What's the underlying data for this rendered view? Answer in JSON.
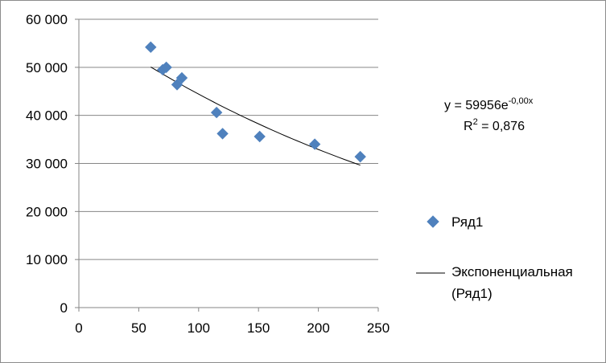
{
  "chart_data": {
    "type": "scatter",
    "title": "",
    "xlabel": "",
    "ylabel": "",
    "xlim": [
      0,
      250
    ],
    "ylim": [
      0,
      60000
    ],
    "x_ticks": [
      "0",
      "50",
      "100",
      "150",
      "200",
      "250"
    ],
    "y_ticks": [
      "0",
      "10 000",
      "20 000",
      "30 000",
      "40 000",
      "50 000",
      "60 000"
    ],
    "grid": "horizontal",
    "legend_position": "right",
    "series": [
      {
        "name": "Ряд1",
        "marker": "diamond",
        "color": "#4f81bd",
        "points": [
          {
            "x": 60,
            "y": 54200
          },
          {
            "x": 70,
            "y": 49500
          },
          {
            "x": 73,
            "y": 50000
          },
          {
            "x": 82,
            "y": 46400
          },
          {
            "x": 86,
            "y": 47800
          },
          {
            "x": 115,
            "y": 40600
          },
          {
            "x": 120,
            "y": 36200
          },
          {
            "x": 151,
            "y": 35600
          },
          {
            "x": 197,
            "y": 34000
          },
          {
            "x": 235,
            "y": 31400
          }
        ]
      }
    ],
    "trendline": {
      "name": "Экспоненциальная (Ряд1)",
      "type": "exponential",
      "a": 59956,
      "b": -0.003,
      "x_range": [
        60,
        235
      ],
      "color": "#000000"
    },
    "equation": {
      "prefix": "y = 59956e",
      "exponent": "-0,00x",
      "r2_prefix": "R",
      "r2_sup": "2",
      "r2_value": " = 0,876"
    },
    "legend": {
      "series_label": "Ряд1",
      "trend_line1": "Экспоненциальная",
      "trend_line2": "(Ряд1)"
    }
  }
}
